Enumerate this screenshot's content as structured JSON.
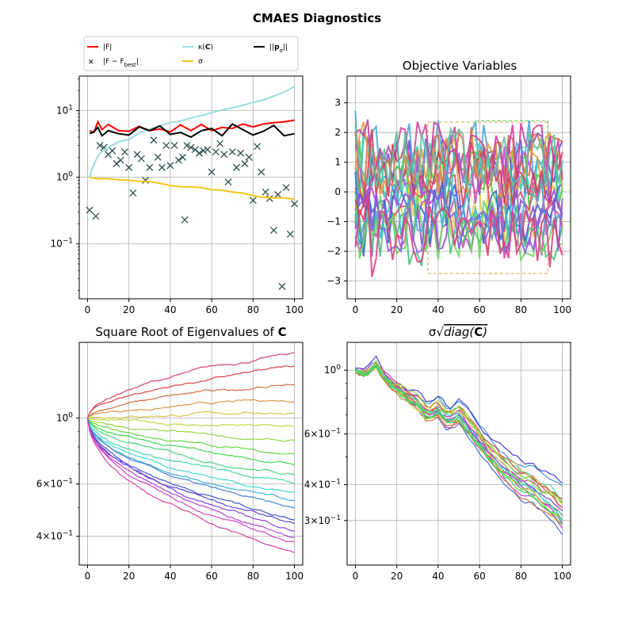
{
  "title": "CMAES Diagnostics",
  "colors": {
    "F": "#ff0000",
    "F_minus_best": "#2f4f4f",
    "kappa_C": "#99dddd",
    "sigma": "#f5c518",
    "p_sigma": "#000000",
    "grid": "#b0b0b0",
    "frame": "#000000"
  },
  "chart_data": [
    {
      "id": "panel-1",
      "type": "line",
      "title": "",
      "xlabel": "",
      "ylabel": "",
      "yscale": "log",
      "xlim": [
        -4,
        104
      ],
      "ylim": [
        0.015,
        33
      ],
      "xticks": [
        "0",
        "20",
        "40",
        "60",
        "80",
        "100"
      ],
      "yticks": [
        {
          "value": 10,
          "label": "10^1"
        },
        {
          "value": 1,
          "label": "10^0"
        },
        {
          "value": 0.1,
          "label": "10^-1"
        }
      ],
      "grid": true,
      "legend": {
        "position": "above",
        "entries": [
          {
            "label": "|F|",
            "marker": "line",
            "color": "#ff0000"
          },
          {
            "label": "|F - F_best|",
            "marker": "x",
            "color": "#2f4f4f"
          },
          {
            "label": "κ(C)",
            "marker": "line",
            "color": "#99dddd"
          },
          {
            "label": "σ",
            "marker": "line",
            "color": "#f5c518"
          },
          {
            "label": "||p_σ||",
            "marker": "line",
            "color": "#000000"
          }
        ]
      },
      "series": [
        {
          "name": "|F|",
          "style": "line",
          "color": "#ff0000",
          "x": [
            1,
            3,
            5,
            7,
            10,
            15,
            20,
            25,
            30,
            35,
            40,
            45,
            50,
            55,
            60,
            65,
            70,
            75,
            80,
            85,
            90,
            95,
            100
          ],
          "y": [
            5.0,
            4.7,
            6.8,
            5.2,
            6.2,
            5.0,
            4.9,
            5.8,
            5.0,
            5.3,
            4.8,
            6.1,
            5.0,
            6.2,
            5.0,
            5.6,
            5.4,
            6.3,
            5.7,
            6.3,
            6.6,
            6.8,
            7.2
          ]
        },
        {
          "name": "|F - F_best|",
          "style": "markers",
          "color": "#2f4f4f",
          "x": [
            1,
            4,
            6,
            8,
            10,
            12,
            14,
            16,
            18,
            20,
            22,
            24,
            26,
            28,
            30,
            32,
            34,
            36,
            38,
            40,
            42,
            44,
            46,
            47,
            48,
            50,
            52,
            54,
            56,
            58,
            60,
            62,
            64,
            66,
            68,
            70,
            72,
            74,
            76,
            78,
            80,
            82,
            84,
            86,
            88,
            90,
            92,
            94,
            96,
            98,
            100
          ],
          "y": [
            0.32,
            0.26,
            3.0,
            2.8,
            2.2,
            2.5,
            1.6,
            1.8,
            2.4,
            1.4,
            0.58,
            2.2,
            1.9,
            0.9,
            1.4,
            3.6,
            2.0,
            1.4,
            3.0,
            1.5,
            3.0,
            1.8,
            2.0,
            0.23,
            3.0,
            2.8,
            2.6,
            2.3,
            2.5,
            2.6,
            1.2,
            2.4,
            3.2,
            2.2,
            0.85,
            2.4,
            1.4,
            2.3,
            1.6,
            2.0,
            0.45,
            2.9,
            1.2,
            0.6,
            0.48,
            0.16,
            0.55,
            0.023,
            0.7,
            0.14,
            0.4
          ]
        },
        {
          "name": "κ(C)",
          "style": "line",
          "color": "#99dddd",
          "x": [
            1,
            2,
            4,
            6,
            10,
            15,
            20,
            25,
            30,
            35,
            40,
            45,
            50,
            55,
            60,
            65,
            70,
            75,
            80,
            85,
            90,
            95,
            100
          ],
          "y": [
            1.0,
            1.3,
            1.8,
            2.3,
            2.8,
            3.4,
            3.7,
            4.6,
            5.3,
            5.9,
            6.6,
            7.0,
            7.8,
            8.4,
            9.3,
            10.2,
            11.0,
            12.0,
            13.3,
            14.5,
            16.5,
            19.0,
            23.0
          ]
        },
        {
          "name": "σ",
          "style": "line",
          "color": "#f5c518",
          "x": [
            1,
            5,
            10,
            15,
            20,
            25,
            30,
            35,
            40,
            45,
            50,
            55,
            60,
            65,
            70,
            75,
            80,
            85,
            90,
            95,
            100
          ],
          "y": [
            1.0,
            0.95,
            0.95,
            0.92,
            0.9,
            0.87,
            0.86,
            0.81,
            0.75,
            0.72,
            0.72,
            0.7,
            0.65,
            0.64,
            0.6,
            0.58,
            0.53,
            0.5,
            0.49,
            0.49,
            0.47
          ]
        },
        {
          "name": "||p_σ||",
          "style": "line",
          "color": "#000000",
          "x": [
            1,
            3,
            5,
            7,
            10,
            15,
            20,
            25,
            30,
            35,
            40,
            45,
            50,
            55,
            60,
            65,
            70,
            75,
            80,
            85,
            90,
            95,
            100
          ],
          "y": [
            4.5,
            4.8,
            5.6,
            4.2,
            5.0,
            4.5,
            4.3,
            5.7,
            5.0,
            5.9,
            4.4,
            4.7,
            4.0,
            5.0,
            5.4,
            4.2,
            6.3,
            5.2,
            4.3,
            4.9,
            6.0,
            4.2,
            4.5
          ]
        }
      ]
    },
    {
      "id": "panel-2",
      "type": "line",
      "title": "Objective Variables",
      "xlabel": "",
      "ylabel": "",
      "yscale": "linear",
      "xlim": [
        -4,
        104
      ],
      "ylim": [
        -3.6,
        3.9
      ],
      "xticks": [
        "0",
        "20",
        "40",
        "60",
        "80",
        "100"
      ],
      "yticks": [
        "3",
        "2",
        "1",
        "0",
        "−1",
        "−2",
        "−3"
      ],
      "grid": true,
      "n_series": 20,
      "series_palette": [
        "#4bc93e",
        "#e0d040",
        "#6a50d8",
        "#d84ab0",
        "#4fa6d6",
        "#e05070",
        "#40d0b0",
        "#9a4ad8",
        "#e06a40",
        "#50c080",
        "#c650d0",
        "#3a70d0",
        "#e0a040",
        "#70d860",
        "#d040a0",
        "#40b0d0",
        "#d04060",
        "#8060e0",
        "#60c0a0",
        "#e04080"
      ],
      "notes": "20 noisy objective variable traces over 100 iterations, values between about -3.2 and 3.5; dashed rectangles mark best-solution envelopes"
    },
    {
      "id": "panel-3",
      "type": "line",
      "title": "Square Root of Eigenvalues of C",
      "xlabel": "",
      "ylabel": "",
      "yscale": "log",
      "xlim": [
        -4,
        104
      ],
      "ylim": [
        0.32,
        1.8
      ],
      "xticks": [
        "0",
        "20",
        "40",
        "60",
        "80",
        "100"
      ],
      "yticks": [
        {
          "value": 1.0,
          "label": "10^0"
        },
        {
          "value": 0.6,
          "label": "6×10^-1"
        },
        {
          "value": 0.4,
          "label": "4×10^-1"
        }
      ],
      "grid": true,
      "n_series": 20,
      "final_values": [
        1.65,
        1.48,
        1.3,
        1.15,
        1.05,
        0.93,
        0.83,
        0.76,
        0.7,
        0.65,
        0.6,
        0.56,
        0.52,
        0.49,
        0.46,
        0.44,
        0.42,
        0.4,
        0.38,
        0.35
      ],
      "notes": "each eigenvalue trace starts near 1.0 at iteration 0 and diverges smoothly to its final value by iteration 100"
    },
    {
      "id": "panel-4",
      "type": "line",
      "title": "σ√diag(C)",
      "xlabel": "",
      "ylabel": "",
      "yscale": "log",
      "xlim": [
        -4,
        104
      ],
      "ylim": [
        0.21,
        1.25
      ],
      "xticks": [
        "0",
        "20",
        "40",
        "60",
        "80",
        "100"
      ],
      "yticks": [
        {
          "value": 1.0,
          "label": "10^0"
        },
        {
          "value": 0.6,
          "label": "6×10^-1"
        },
        {
          "value": 0.4,
          "label": "4×10^-1"
        },
        {
          "value": 0.3,
          "label": "3×10^-1"
        }
      ],
      "grid": true,
      "n_series": 20,
      "shared_trend": {
        "x": [
          0,
          5,
          10,
          15,
          20,
          25,
          30,
          35,
          40,
          45,
          50,
          55,
          60,
          65,
          70,
          75,
          80,
          85,
          90,
          95,
          100
        ],
        "y": [
          1.0,
          0.97,
          1.05,
          0.93,
          0.88,
          0.82,
          0.78,
          0.7,
          0.74,
          0.68,
          0.72,
          0.65,
          0.58,
          0.52,
          0.48,
          0.45,
          0.42,
          0.41,
          0.38,
          0.36,
          0.33
        ]
      },
      "notes": "20 closely bundled traces following the shared trend with per-series spread; lowest trace reaches about 0.22 at iteration 100"
    }
  ]
}
